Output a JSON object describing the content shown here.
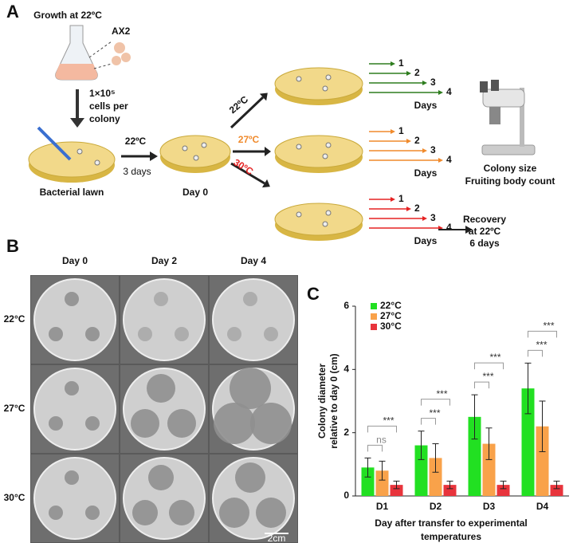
{
  "panel_a": {
    "label": "A",
    "growth": "Growth at 22ºC",
    "strain": "AX2",
    "cells": [
      "1×10⁵",
      "cells per",
      "colony"
    ],
    "lawn": "Bacterial lawn",
    "first_temp": "22ºC",
    "first_days": "3 days",
    "day0": "Day 0",
    "branches": [
      {
        "temp": "22ºC",
        "label_color": "#111111",
        "arrow_color": "#2e7d1e"
      },
      {
        "temp": "27ºC",
        "label_color": "#f08a2c",
        "arrow_color": "#f08a2c"
      },
      {
        "temp": "30ºC",
        "label_color": "#e52222",
        "arrow_color": "#e52222"
      }
    ],
    "day_numbers": [
      "1",
      "2",
      "3",
      "4"
    ],
    "days": "Days",
    "readout": [
      "Colony size",
      "Fruiting body count"
    ],
    "recovery": [
      "Recovery",
      "at 22ºC",
      "6 days"
    ]
  },
  "panel_b": {
    "label": "B",
    "columns": [
      "Day 0",
      "Day 2",
      "Day 4"
    ],
    "rows": [
      "22°C",
      "27°C",
      "30°C"
    ],
    "scale": "2cm"
  },
  "chart_data": {
    "type": "bar",
    "panel_label": "C",
    "y_label": [
      "Colony diameter",
      "relative to day 0 (cm)"
    ],
    "x_label": [
      "Day after transfer to experimental",
      "temperatures"
    ],
    "categories": [
      "D1",
      "D2",
      "D3",
      "D4"
    ],
    "series": [
      {
        "name": "22°C",
        "color": "#22e022",
        "values": [
          0.9,
          1.6,
          2.5,
          3.4
        ],
        "errors": [
          0.3,
          0.45,
          0.7,
          0.8
        ]
      },
      {
        "name": "27°C",
        "color": "#f9a24a",
        "values": [
          0.8,
          1.2,
          1.65,
          2.2
        ],
        "errors": [
          0.3,
          0.45,
          0.5,
          0.8
        ]
      },
      {
        "name": "30°C",
        "color": "#e8343c",
        "values": [
          0.35,
          0.35,
          0.35,
          0.35
        ],
        "errors": [
          0.12,
          0.12,
          0.12,
          0.12
        ]
      }
    ],
    "significance": [
      [
        "ns",
        "***"
      ],
      [
        "***",
        "***"
      ],
      [
        "***",
        "***"
      ],
      [
        "***",
        "***"
      ]
    ],
    "ylim": [
      0,
      6
    ],
    "yticks": [
      0,
      2,
      4,
      6
    ]
  }
}
